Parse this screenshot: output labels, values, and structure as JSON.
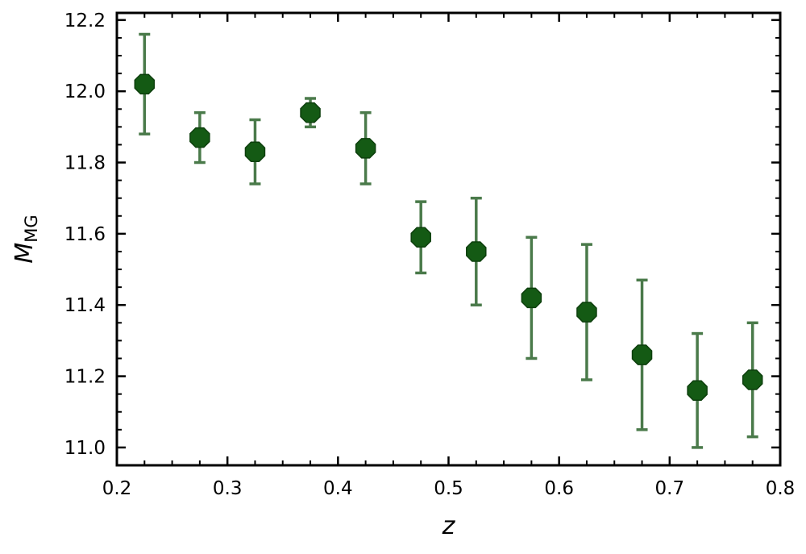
{
  "chart_data": {
    "type": "scatter",
    "title": "",
    "xlabel": "z",
    "ylabel": {
      "main": "M",
      "subscript": "MG"
    },
    "xlim": [
      0.2,
      0.8
    ],
    "ylim": [
      10.95,
      12.22
    ],
    "x_ticks": [
      "0.2",
      "0.3",
      "0.4",
      "0.5",
      "0.6",
      "0.7",
      "0.8"
    ],
    "y_ticks": [
      "11.0",
      "11.2",
      "11.4",
      "11.6",
      "11.8",
      "12.0",
      "12.2"
    ],
    "grid": false,
    "legend": "none",
    "marker": "octagon",
    "color": "#145a14",
    "errorbar_color": "#4a7a4a",
    "series": [
      {
        "x": [
          0.225,
          0.275,
          0.325,
          0.375,
          0.425,
          0.475,
          0.525,
          0.575,
          0.625,
          0.675,
          0.725,
          0.775
        ],
        "y": [
          12.02,
          11.87,
          11.83,
          11.94,
          11.84,
          11.59,
          11.55,
          11.42,
          11.38,
          11.26,
          11.16,
          11.19
        ],
        "y_lower": [
          11.88,
          11.8,
          11.74,
          11.9,
          11.74,
          11.49,
          11.4,
          11.25,
          11.19,
          11.05,
          11.0,
          11.03
        ],
        "y_upper": [
          12.16,
          11.94,
          11.92,
          11.98,
          11.94,
          11.69,
          11.7,
          11.59,
          11.57,
          11.47,
          11.32,
          11.35
        ]
      }
    ]
  }
}
